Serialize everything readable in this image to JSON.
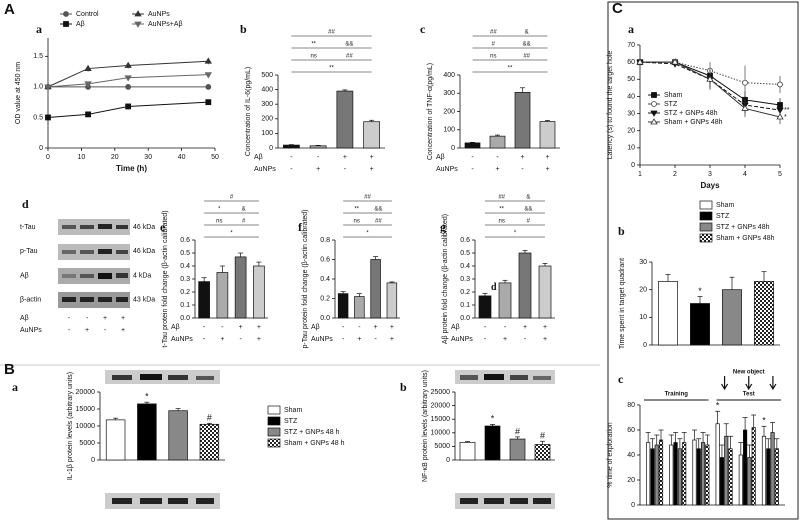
{
  "sections": [
    "A",
    "B",
    "C"
  ],
  "blots": {
    "label": "d",
    "rows": [
      {
        "name": "t-Tau",
        "size": "46 kDa"
      },
      {
        "name": "p-Tau",
        "size": "46 kDa"
      },
      {
        "name": "Aβ",
        "size": "4 kDa"
      },
      {
        "name": "β-actin",
        "size": "43 kDa"
      }
    ],
    "treatments": [
      {
        "name": "Aβ",
        "values": [
          "-",
          "-",
          "+",
          "+"
        ]
      },
      {
        "name": "AuNPs",
        "values": [
          "-",
          "+",
          "-",
          "+"
        ]
      }
    ]
  },
  "chart_data": [
    {
      "label": "a",
      "type": "line",
      "xlabel": "Time (h)",
      "ylabel": "OD value at 450 nm",
      "x": [
        0,
        12,
        24,
        48
      ],
      "xlim": [
        0,
        50
      ],
      "xticks": [
        0,
        10,
        20,
        30,
        40,
        50
      ],
      "ylim": [
        0,
        1.8
      ],
      "yticks": [
        0,
        0.5,
        {
          "value": 1,
          "label": "1.0"
        },
        1.5
      ],
      "series": [
        {
          "name": "Control",
          "color": "#555",
          "marker": "circle",
          "dash": "solid",
          "values": [
            1.0,
            1.0,
            1.0,
            1.0
          ],
          "errors": [
            0.02,
            0.02,
            0.02,
            0.02
          ]
        },
        {
          "name": "AuNPs",
          "color": "#333",
          "marker": "tri-up",
          "dash": "solid",
          "values": [
            1.0,
            1.3,
            1.35,
            1.42
          ],
          "errors": [
            0.03,
            0.05,
            0.05,
            0.05
          ]
        },
        {
          "name": "Aβ",
          "color": "#111",
          "marker": "square",
          "dash": "solid",
          "values": [
            0.5,
            0.55,
            0.68,
            0.75
          ],
          "errors": [
            0.02,
            0.02,
            0.03,
            0.02
          ]
        },
        {
          "name": "AuNPs+Aβ",
          "color": "#666",
          "marker": "tri-down",
          "dash": "solid",
          "values": [
            1.0,
            1.05,
            1.15,
            1.2
          ],
          "errors": [
            0.02,
            0.03,
            0.03,
            0.03
          ]
        }
      ]
    },
    {
      "label": "b",
      "type": "bar",
      "ylabel": "Concentration of IL-6(pg/mL)",
      "values": [
        20,
        15,
        390,
        180
      ],
      "errors": [
        3,
        3,
        8,
        10
      ],
      "colors": [
        "#111",
        "#aaa",
        "#777",
        "#ccc"
      ],
      "ylim": [
        0,
        500
      ],
      "yticks": [
        0,
        100,
        200,
        300,
        400,
        500
      ],
      "annotations": [
        [
          "**"
        ],
        [
          "ns",
          "##"
        ],
        [
          "**",
          "&&"
        ],
        [
          "##"
        ]
      ],
      "treatments": [
        {
          "name": "Aβ",
          "values": [
            "-",
            "-",
            "+",
            "+"
          ]
        },
        {
          "name": "AuNPs",
          "values": [
            "-",
            "+",
            "-",
            "+"
          ]
        }
      ]
    },
    {
      "label": "c",
      "type": "bar",
      "ylabel": "Concentration of TNF-α(pg/mL)",
      "values": [
        28,
        65,
        305,
        145
      ],
      "errors": [
        3,
        6,
        25,
        6
      ],
      "colors": [
        "#111",
        "#aaa",
        "#777",
        "#ccc"
      ],
      "ylim": [
        0,
        400
      ],
      "yticks": [
        0,
        100,
        200,
        300,
        400
      ],
      "annotations": [
        [
          "**"
        ],
        [
          "ns",
          "##"
        ],
        [
          "#",
          "&&"
        ],
        [
          "##",
          "&"
        ]
      ],
      "treatments": [
        {
          "name": "Aβ",
          "values": [
            "-",
            "-",
            "+",
            "+"
          ]
        },
        {
          "name": "AuNPs",
          "values": [
            "-",
            "+",
            "-",
            "+"
          ]
        }
      ]
    },
    {
      "label": "e",
      "type": "bar",
      "ylabel": "t-Tau protein fold change (β-actin calibrated)",
      "values": [
        0.28,
        0.35,
        0.47,
        0.4
      ],
      "errors": [
        0.03,
        0.05,
        0.03,
        0.03
      ],
      "colors": [
        "#111",
        "#aaa",
        "#777",
        "#ccc"
      ],
      "ylim": [
        0,
        0.6
      ],
      "yticks": [
        {
          "value": 0,
          "label": "0.0"
        },
        0.1,
        0.2,
        0.3,
        0.4,
        0.5,
        0.6
      ],
      "annotations": [
        [
          "*"
        ],
        [
          "ns",
          "#"
        ],
        [
          "*",
          "&"
        ],
        [
          "#"
        ]
      ],
      "treatments": [
        {
          "name": "Aβ",
          "values": [
            "-",
            "-",
            "+",
            "+"
          ]
        },
        {
          "name": "AuNPs",
          "values": [
            "-",
            "+",
            "-",
            "+"
          ]
        }
      ]
    },
    {
      "label": "f",
      "type": "bar",
      "ylabel": "p-Tau protein fold change (β-actin calibrated)",
      "values": [
        0.25,
        0.22,
        0.6,
        0.36
      ],
      "errors": [
        0.02,
        0.03,
        0.03,
        0.01
      ],
      "colors": [
        "#111",
        "#aaa",
        "#777",
        "#ccc"
      ],
      "ylim": [
        0,
        0.8
      ],
      "yticks": [
        {
          "value": 0,
          "label": "0.0"
        },
        0.2,
        0.4,
        0.6,
        0.8
      ],
      "annotations": [
        [
          "*"
        ],
        [
          "ns",
          "##"
        ],
        [
          "**",
          "&&"
        ],
        [
          "##"
        ]
      ],
      "treatments": [
        {
          "name": "Aβ",
          "values": [
            "-",
            "-",
            "+",
            "+"
          ]
        },
        {
          "name": "AuNPs",
          "values": [
            "-",
            "+",
            "-",
            "+"
          ]
        }
      ]
    },
    {
      "label": "g",
      "type": "bar",
      "ylabel": "Aβ protein fold change (β-actin calibrated)",
      "inset_label": "d",
      "values": [
        0.17,
        0.27,
        0.5,
        0.4
      ],
      "errors": [
        0.02,
        0.02,
        0.02,
        0.02
      ],
      "colors": [
        "#111",
        "#aaa",
        "#777",
        "#ccc"
      ],
      "ylim": [
        0,
        0.6
      ],
      "yticks": [
        {
          "value": 0,
          "label": "0.0"
        },
        0.1,
        0.2,
        0.3,
        0.4,
        0.5,
        0.6
      ],
      "annotations": [
        [
          "*"
        ],
        [
          "ns",
          "#"
        ],
        [
          "**",
          "&&"
        ],
        [
          "##",
          "&"
        ]
      ],
      "treatments": [
        {
          "name": "Aβ",
          "values": [
            "-",
            "-",
            "+",
            "+"
          ]
        },
        {
          "name": "AuNPs",
          "values": [
            "-",
            "+",
            "-",
            "+"
          ]
        }
      ]
    },
    {
      "label": "a",
      "type": "bar",
      "ylabel": "IL-1β protein levels (arbitrary units)",
      "values": [
        11800,
        16500,
        14500,
        10500
      ],
      "errors": [
        500,
        500,
        600,
        300
      ],
      "colors": [
        "#fff",
        "#000",
        "#888",
        "#fff"
      ],
      "patterns": [
        null,
        null,
        null,
        "checker"
      ],
      "ylim": [
        0,
        20000
      ],
      "yticks": [
        0,
        5000,
        10000,
        15000,
        20000
      ],
      "marks": [
        null,
        "*",
        null,
        "#"
      ],
      "legend": [
        "Sham",
        "STZ",
        "STZ + GNPs 48 h",
        "Sham + GNPs 48 h"
      ]
    },
    {
      "label": "b",
      "type": "bar",
      "ylabel": "NF-κB protein levels (arbitrary units)",
      "values": [
        6500,
        12500,
        7700,
        5700
      ],
      "errors": [
        300,
        600,
        800,
        1200
      ],
      "colors": [
        "#fff",
        "#000",
        "#888",
        "#fff"
      ],
      "patterns": [
        null,
        null,
        null,
        "checker"
      ],
      "ylim": [
        0,
        25000
      ],
      "yticks": [
        0,
        5000,
        10000,
        15000,
        20000,
        25000
      ],
      "marks": [
        null,
        "*",
        "#",
        "#"
      ]
    },
    {
      "label": "a",
      "type": "line",
      "xlabel": "Days",
      "ylabel": "Latency (s) to found the target hole",
      "x": [
        1,
        2,
        3,
        4,
        5
      ],
      "xlim": [
        1,
        5
      ],
      "xticks": [
        1,
        2,
        3,
        4,
        5
      ],
      "ylim": [
        0,
        70
      ],
      "yticks": [
        0,
        10,
        20,
        30,
        40,
        50,
        60,
        70
      ],
      "annotations": [
        "**",
        "*"
      ],
      "series": [
        {
          "name": "Sham",
          "color": "#111",
          "marker": "square",
          "dash": "solid",
          "values": [
            60,
            60,
            52,
            38,
            35
          ],
          "errors": [
            2,
            2,
            4,
            5,
            4
          ]
        },
        {
          "name": "STZ",
          "color": "#444",
          "marker": "circle-open",
          "dash": "dotted",
          "values": [
            60,
            60,
            55,
            48,
            47
          ],
          "errors": [
            2,
            2,
            5,
            10,
            5
          ]
        },
        {
          "name": "STZ + GNPs 48h",
          "color": "#111",
          "marker": "tri-down",
          "dash": "dashed",
          "values": [
            60,
            59,
            50,
            35,
            32
          ],
          "errors": [
            2,
            2,
            6,
            5,
            5
          ]
        },
        {
          "name": "Sham + GNPs 48h",
          "color": "#333",
          "marker": "tri-up-open",
          "dash": "solid",
          "values": [
            60,
            60,
            50,
            33,
            28
          ],
          "errors": [
            2,
            2,
            5,
            5,
            4
          ]
        }
      ]
    },
    {
      "label": "b",
      "type": "bar",
      "ylabel": "Time spent in target quadrant",
      "values": [
        23,
        15,
        20,
        23
      ],
      "errors": [
        2.5,
        2.5,
        4.5,
        3.5
      ],
      "colors": [
        "#fff",
        "#000",
        "#888",
        "#fff"
      ],
      "patterns": [
        null,
        null,
        null,
        "checker"
      ],
      "ylim": [
        0,
        30
      ],
      "yticks": [
        0,
        10,
        20,
        30
      ],
      "marks": [
        null,
        "*",
        null,
        null
      ],
      "legend": [
        "Sham",
        "STZ",
        "STZ + GNPs 48h",
        "Sham + GNPs 48h"
      ]
    },
    {
      "label": "c",
      "type": "bar",
      "ylabel": "% time of exploration",
      "groups": 4,
      "phases": [
        "Training",
        "Test"
      ],
      "event": "New object",
      "values": [
        50,
        45,
        48,
        52,
        48,
        50,
        45,
        50,
        52,
        45,
        50,
        48,
        65,
        38,
        55,
        45,
        40,
        60,
        38,
        62,
        55,
        45,
        58,
        45
      ],
      "errors": [
        8,
        8,
        8,
        8,
        8,
        8,
        8,
        8,
        8,
        8,
        8,
        8,
        10,
        10,
        10,
        10,
        10,
        10,
        10,
        10,
        8,
        8,
        8,
        8
      ],
      "colors": [
        "#fff",
        "#000",
        "#888",
        "#fff"
      ],
      "patterns": [
        null,
        null,
        null,
        "checker"
      ],
      "ylim": [
        0,
        80
      ],
      "yticks": [
        0,
        20,
        40,
        60,
        80
      ],
      "marks": [
        null,
        null,
        null,
        null,
        null,
        null,
        null,
        null,
        null,
        null,
        null,
        null,
        "*",
        null,
        null,
        null,
        null,
        null,
        null,
        null,
        "*",
        null,
        null,
        null
      ]
    }
  ]
}
